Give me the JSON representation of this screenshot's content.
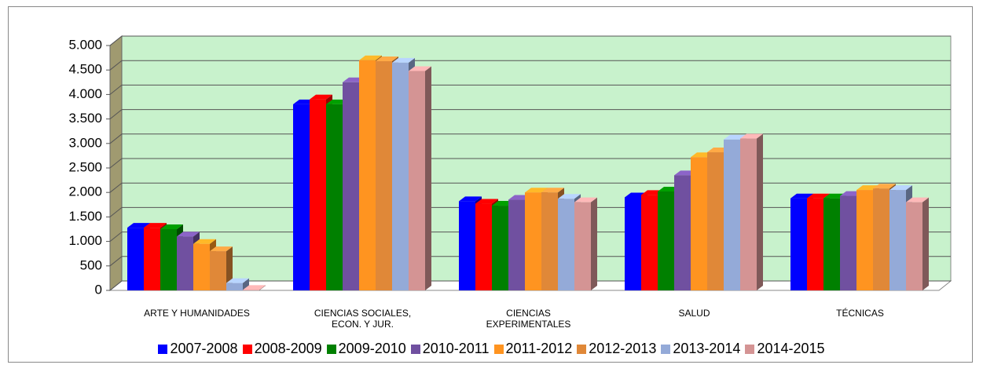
{
  "chart_data": {
    "type": "bar3d",
    "categories": [
      "ARTE Y HUMANIDADES",
      "CIENCIAS SOCIALES,\nECON. Y JUR.",
      "CIENCIAS\nEXPERIMENTALES",
      "SALUD",
      "TÉCNICAS"
    ],
    "series": [
      {
        "name": "2007-2008",
        "color": "#0000ff",
        "values": [
          1280,
          3800,
          1820,
          1900,
          1880
        ]
      },
      {
        "name": "2008-2009",
        "color": "#ff0000",
        "values": [
          1280,
          3900,
          1770,
          1950,
          1880
        ]
      },
      {
        "name": "2009-2010",
        "color": "#008000",
        "values": [
          1250,
          3800,
          1730,
          2020,
          1880
        ]
      },
      {
        "name": "2010-2011",
        "color": "#7050a0",
        "values": [
          1100,
          4250,
          1850,
          2350,
          1930
        ]
      },
      {
        "name": "2011-2012",
        "color": "#ff9420",
        "values": [
          950,
          4700,
          2000,
          2720,
          2050
        ]
      },
      {
        "name": "2012-2013",
        "color": "#e08838",
        "values": [
          800,
          4680,
          2000,
          2820,
          2080
        ]
      },
      {
        "name": "2013-2014",
        "color": "#94aad8",
        "values": [
          150,
          4650,
          1870,
          3080,
          2050
        ]
      },
      {
        "name": "2014-2015",
        "color": "#d49494",
        "values": [
          10,
          4480,
          1800,
          3100,
          1800
        ]
      }
    ],
    "ylim": [
      0,
      5000
    ],
    "yticks": [
      0,
      500,
      {
        "value": 1000,
        "label": "1.000"
      },
      {
        "value": 1500,
        "label": "1.500"
      },
      {
        "value": 2000,
        "label": "2.000"
      },
      {
        "value": 2500,
        "label": "2.500"
      },
      {
        "value": 3000,
        "label": "3.000"
      },
      {
        "value": 3500,
        "label": "3.500"
      },
      {
        "value": 4000,
        "label": "4.000"
      },
      {
        "value": 4500,
        "label": "4.500"
      },
      {
        "value": 5000,
        "label": "5.000"
      }
    ],
    "grid": true,
    "legend": "bottom"
  }
}
